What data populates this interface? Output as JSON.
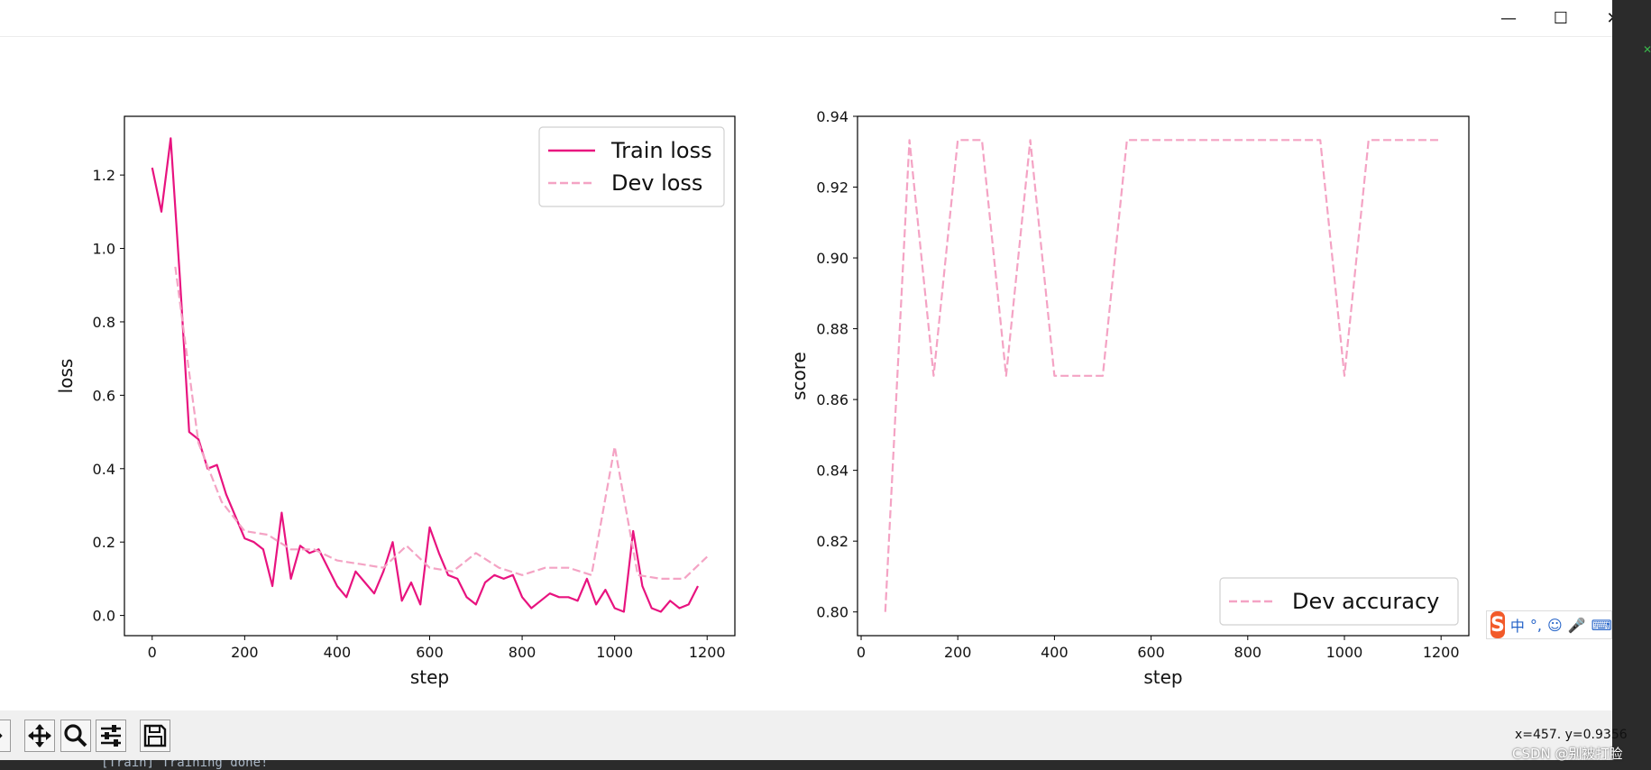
{
  "window": {
    "minimize_glyph": "—",
    "maximize_glyph": "☐",
    "close_glyph": "✕"
  },
  "chart_data": [
    {
      "type": "line",
      "title": "",
      "xlabel": "step",
      "ylabel": "loss",
      "xlim": [
        -60,
        1260
      ],
      "ylim": [
        -0.055,
        1.36
      ],
      "xticks": [
        "0",
        "200",
        "400",
        "600",
        "800",
        "1000",
        "1200"
      ],
      "xtick_values": [
        0,
        200,
        400,
        600,
        800,
        1000,
        1200
      ],
      "yticks": [
        "0.0",
        "0.2",
        "0.4",
        "0.6",
        "0.8",
        "1.0",
        "1.2"
      ],
      "ytick_values": [
        0.0,
        0.2,
        0.4,
        0.6,
        0.8,
        1.0,
        1.2
      ],
      "legend_position": "upper right",
      "grid": false,
      "series": [
        {
          "name": "Train loss",
          "color": "#e8137f",
          "style": "solid",
          "x": [
            0,
            20,
            40,
            60,
            80,
            100,
            120,
            140,
            160,
            180,
            200,
            220,
            240,
            260,
            280,
            300,
            320,
            340,
            360,
            380,
            400,
            420,
            440,
            460,
            480,
            500,
            520,
            540,
            560,
            580,
            600,
            620,
            640,
            660,
            680,
            700,
            720,
            740,
            760,
            780,
            800,
            820,
            840,
            860,
            880,
            900,
            920,
            940,
            960,
            980,
            1000,
            1020,
            1040,
            1060,
            1080,
            1100,
            1120,
            1140,
            1160,
            1180
          ],
          "y": [
            1.22,
            1.1,
            1.3,
            0.92,
            0.5,
            0.48,
            0.4,
            0.41,
            0.33,
            0.27,
            0.21,
            0.2,
            0.18,
            0.08,
            0.28,
            0.1,
            0.19,
            0.17,
            0.18,
            0.13,
            0.08,
            0.05,
            0.12,
            0.09,
            0.06,
            0.12,
            0.2,
            0.04,
            0.09,
            0.03,
            0.24,
            0.17,
            0.11,
            0.1,
            0.05,
            0.03,
            0.09,
            0.11,
            0.1,
            0.11,
            0.05,
            0.02,
            0.04,
            0.06,
            0.05,
            0.05,
            0.04,
            0.1,
            0.03,
            0.07,
            0.02,
            0.01,
            0.23,
            0.08,
            0.02,
            0.01,
            0.04,
            0.02,
            0.03,
            0.08
          ]
        },
        {
          "name": "Dev loss",
          "color": "#f4a3c4",
          "style": "dashed",
          "x": [
            50,
            100,
            150,
            200,
            250,
            300,
            350,
            400,
            450,
            500,
            550,
            600,
            650,
            700,
            750,
            800,
            850,
            900,
            950,
            1000,
            1050,
            1100,
            1150,
            1200
          ],
          "y": [
            0.95,
            0.47,
            0.31,
            0.23,
            0.22,
            0.18,
            0.18,
            0.15,
            0.14,
            0.13,
            0.19,
            0.13,
            0.12,
            0.17,
            0.13,
            0.11,
            0.13,
            0.13,
            0.11,
            0.46,
            0.11,
            0.1,
            0.1,
            0.16
          ]
        }
      ]
    },
    {
      "type": "line",
      "title": "",
      "xlabel": "step",
      "ylabel": "score",
      "xlim": [
        -7.5,
        1257.5
      ],
      "ylim": [
        0.7933,
        0.94
      ],
      "xticks": [
        "0",
        "200",
        "400",
        "600",
        "800",
        "1000",
        "1200"
      ],
      "xtick_values": [
        0,
        200,
        400,
        600,
        800,
        1000,
        1200
      ],
      "yticks": [
        "0.80",
        "0.82",
        "0.84",
        "0.86",
        "0.88",
        "0.90",
        "0.92",
        "0.94"
      ],
      "ytick_values": [
        0.8,
        0.82,
        0.84,
        0.86,
        0.88,
        0.9,
        0.92,
        0.94
      ],
      "legend_position": "lower right",
      "grid": false,
      "series": [
        {
          "name": "Dev accuracy",
          "color": "#f4a3c4",
          "style": "dashed",
          "x": [
            50,
            100,
            150,
            200,
            250,
            300,
            350,
            400,
            450,
            500,
            550,
            600,
            650,
            700,
            750,
            800,
            850,
            900,
            950,
            1000,
            1050,
            1100,
            1150,
            1200
          ],
          "y": [
            0.8,
            0.9333,
            0.8667,
            0.9333,
            0.9333,
            0.8667,
            0.9333,
            0.8667,
            0.8667,
            0.8667,
            0.9333,
            0.9333,
            0.9333,
            0.9333,
            0.9333,
            0.9333,
            0.9333,
            0.9333,
            0.9333,
            0.8667,
            0.9333,
            0.9333,
            0.9333,
            0.9333
          ]
        }
      ]
    }
  ],
  "toolbar": {
    "coords_text": "x=457. y=0.9356"
  },
  "terminal": {
    "line": "[Train] Training done!"
  },
  "watermark": "CSDN @别被打脸",
  "ime": {
    "logo": "S",
    "mode": "中",
    "punct": "°,"
  }
}
